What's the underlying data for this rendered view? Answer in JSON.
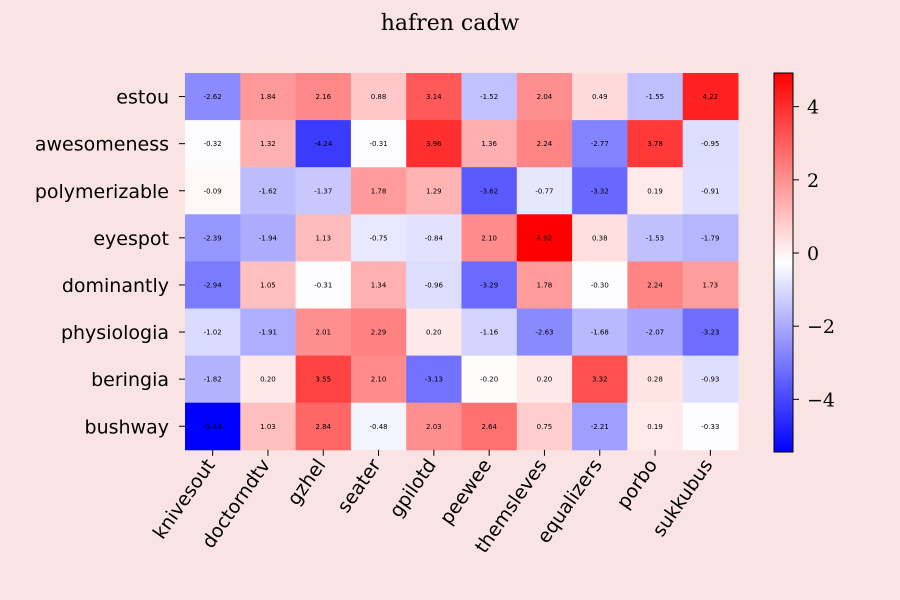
{
  "chart_data": {
    "type": "heatmap",
    "title": "hafren cadw",
    "rows": [
      "estou",
      "awesomeness",
      "polymerizable",
      "eyespot",
      "dominantly",
      "physiologia",
      "beringia",
      "bushway"
    ],
    "columns": [
      "knivesout",
      "doctorndtv",
      "gzhel",
      "seater",
      "gpilotd",
      "peewee",
      "themsleves",
      "equalizers",
      "porbo",
      "sukkubus"
    ],
    "values": [
      [
        -2.62,
        1.84,
        2.16,
        0.88,
        3.14,
        -1.52,
        2.04,
        0.49,
        -1.55,
        4.22
      ],
      [
        -0.32,
        1.32,
        -4.24,
        -0.31,
        3.96,
        1.36,
        2.24,
        -2.77,
        3.78,
        -0.95
      ],
      [
        -0.09,
        -1.62,
        -1.37,
        1.78,
        1.29,
        -3.62,
        -0.77,
        -3.32,
        0.19,
        -0.91
      ],
      [
        -2.39,
        -1.94,
        1.13,
        -0.75,
        -0.84,
        2.1,
        4.92,
        0.38,
        -1.53,
        -1.79
      ],
      [
        -2.94,
        1.05,
        -0.31,
        1.34,
        -0.96,
        -3.29,
        1.78,
        -0.3,
        2.24,
        1.73
      ],
      [
        -1.02,
        -1.91,
        2.01,
        2.29,
        0.2,
        -1.16,
        -2.63,
        -1.68,
        -2.07,
        -3.23
      ],
      [
        -1.82,
        0.2,
        3.55,
        2.1,
        -3.13,
        -0.2,
        0.2,
        3.32,
        0.28,
        -0.93
      ],
      [
        -5.44,
        1.03,
        2.84,
        -0.48,
        2.03,
        2.64,
        0.75,
        -2.21,
        0.19,
        -0.33
      ]
    ],
    "colormap": "bwr",
    "vmin": -5.44,
    "vmax": 4.92,
    "colorbar_ticks": [
      4,
      2,
      0,
      -2,
      -4
    ],
    "colorbar_tick_labels": [
      "4",
      "2",
      "0",
      "−2",
      "−4"
    ],
    "colors": {
      "background": "#fae3e3",
      "low": "#0000ff",
      "mid": "#ffffff",
      "high": "#ff0000"
    }
  }
}
